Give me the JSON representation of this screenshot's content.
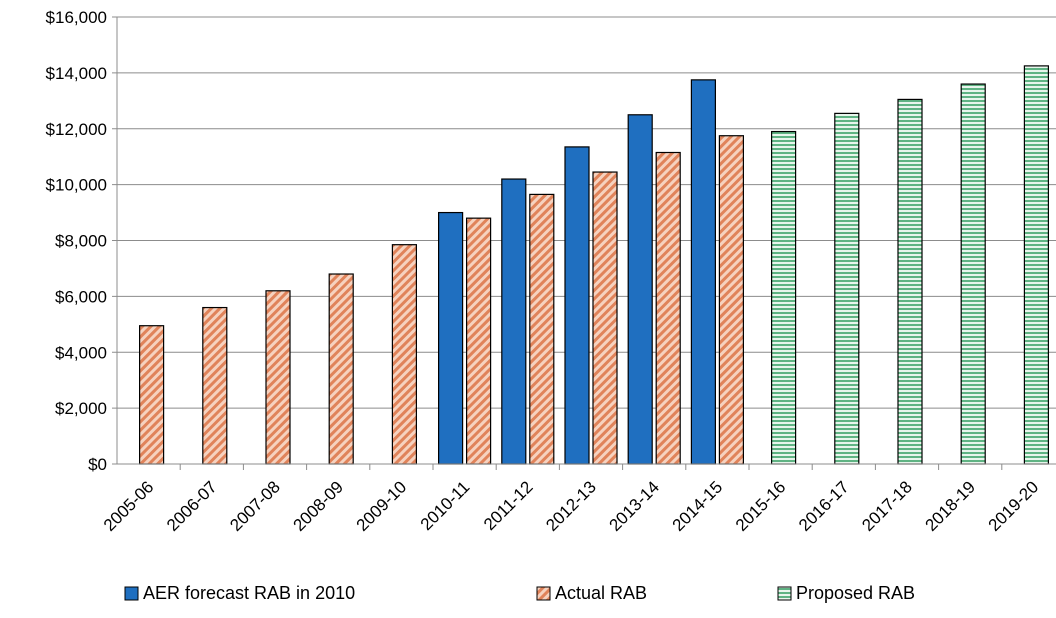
{
  "chart_data": {
    "type": "bar",
    "categories": [
      "2005-06",
      "2006-07",
      "2007-08",
      "2008-09",
      "2009-10",
      "2010-11",
      "2011-12",
      "2012-13",
      "2013-14",
      "2014-15",
      "2015-16",
      "2016-17",
      "2017-18",
      "2018-19",
      "2019-20"
    ],
    "series": [
      {
        "name": "AER forecast RAB in 2010",
        "color": "#1f6fc0",
        "fill": "solid",
        "values": [
          null,
          null,
          null,
          null,
          null,
          9000,
          10200,
          11350,
          12500,
          13750,
          null,
          null,
          null,
          null,
          null
        ]
      },
      {
        "name": "Actual RAB",
        "color": "#e0835a",
        "fill": "diagonal-hatch",
        "values": [
          4950,
          5600,
          6200,
          6800,
          7850,
          8800,
          9650,
          10450,
          11150,
          11750,
          null,
          null,
          null,
          null,
          null
        ]
      },
      {
        "name": "Proposed RAB",
        "color": "#6fbf8f",
        "fill": "horizontal-hatch",
        "values": [
          null,
          null,
          null,
          null,
          null,
          null,
          null,
          null,
          null,
          null,
          11900,
          12550,
          13050,
          13600,
          14250
        ]
      }
    ],
    "y_ticks": [
      "$0",
      "$2,000",
      "$4,000",
      "$6,000",
      "$8,000",
      "$10,000",
      "$12,000",
      "$14,000",
      "$16,000"
    ],
    "ylim": [
      0,
      16000
    ],
    "grid": true,
    "legend_position": "bottom",
    "title": "",
    "xlabel": "",
    "ylabel": ""
  }
}
